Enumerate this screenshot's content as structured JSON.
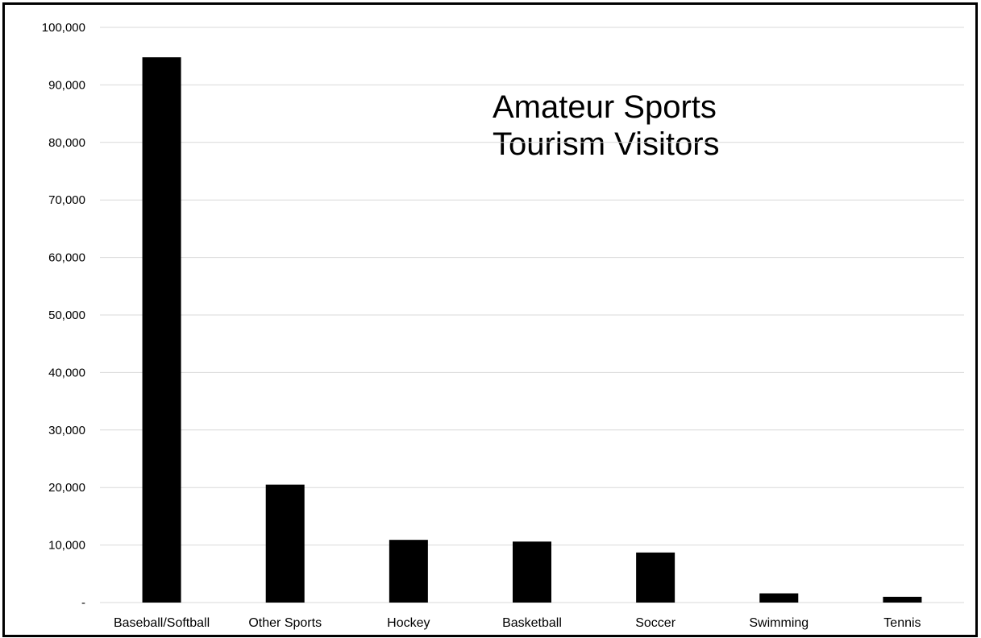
{
  "chart_data": {
    "type": "bar",
    "title_lines": [
      "Amateur Sports",
      "Tourism Visitors"
    ],
    "categories": [
      "Baseball/Softball",
      "Other Sports",
      "Hockey",
      "Basketball",
      "Soccer",
      "Swimming",
      "Tennis"
    ],
    "values": [
      94800,
      20500,
      10900,
      10600,
      8700,
      1600,
      1000
    ],
    "ylim": [
      0,
      100000
    ],
    "yticks": [
      0,
      10000,
      20000,
      30000,
      40000,
      50000,
      60000,
      70000,
      80000,
      90000,
      100000
    ],
    "ytick_labels": [
      "-",
      "10,000",
      "20,000",
      "30,000",
      "40,000",
      "50,000",
      "60,000",
      "70,000",
      "80,000",
      "90,000",
      "100,000"
    ],
    "grid": true,
    "bar_color": "#000000",
    "grid_color": "#d9d9d9"
  }
}
